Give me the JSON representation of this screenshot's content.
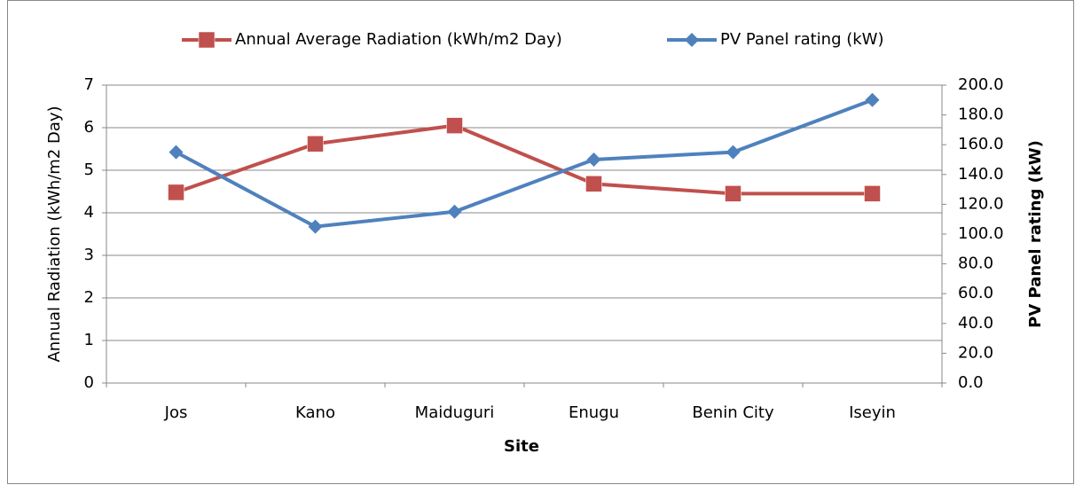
{
  "chart_data": {
    "type": "line",
    "categories": [
      "Jos",
      "Kano",
      "Maiduguri",
      "Enugu",
      "Benin City",
      "Iseyin"
    ],
    "series": [
      {
        "name": "Annual Average Radiation (kWh/m2 Day)",
        "color": "#c0504d",
        "marker": "square",
        "values": [
          4.48,
          5.62,
          6.05,
          4.68,
          4.45,
          4.45
        ]
      },
      {
        "name": "PV Panel rating (kW)",
        "color": "#4f81bd",
        "marker": "diamond",
        "axis": "y2",
        "values": [
          155,
          105,
          115,
          150,
          155,
          190
        ]
      }
    ],
    "xlabel": "Site",
    "ylabel": "Annual Radiation (kWh/m2 Day)",
    "y2label": "PV Panel rating (kW)",
    "ylim": [
      0,
      7
    ],
    "yticks": [
      0,
      1,
      2,
      3,
      4,
      5,
      6,
      7
    ],
    "y2lim": [
      0,
      200
    ],
    "y2ticks": [
      {
        "value": 0,
        "label": "0.0"
      },
      {
        "value": 20,
        "label": "20.0"
      },
      {
        "value": 40,
        "label": "40.0"
      },
      {
        "value": 60,
        "label": "60.0"
      },
      {
        "value": 80,
        "label": "80.0"
      },
      {
        "value": 100,
        "label": "100.0"
      },
      {
        "value": 120,
        "label": "120.0"
      },
      {
        "value": 140,
        "label": "140.0"
      },
      {
        "value": 160,
        "label": "160.0"
      },
      {
        "value": 180,
        "label": "180.0"
      },
      {
        "value": 200,
        "label": "200.0"
      }
    ],
    "grid": true,
    "legend": "top"
  }
}
